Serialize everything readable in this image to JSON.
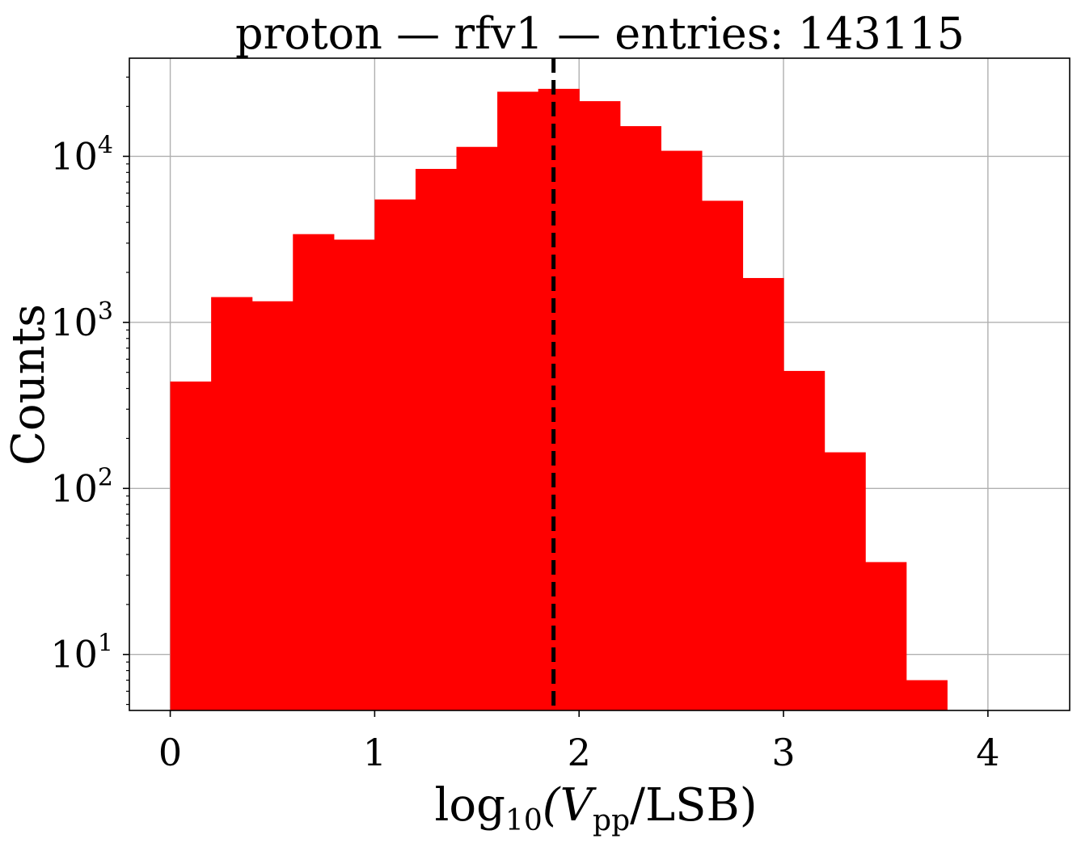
{
  "chart_data": {
    "type": "bar",
    "title": "proton — rfv1 — entries: 143115",
    "xlabel": {
      "main": "log",
      "sub1": "10",
      "mid": "(V",
      "sub2": "pp",
      "end": "/LSB)"
    },
    "ylabel": "Counts",
    "xlim": [
      -0.2,
      4.4
    ],
    "ylim": [
      4.6,
      39000
    ],
    "yscale": "log",
    "grid": true,
    "x_ticks": [
      {
        "value": 0,
        "label": "0"
      },
      {
        "value": 1,
        "label": "1"
      },
      {
        "value": 2,
        "label": "2"
      },
      {
        "value": 3,
        "label": "3"
      },
      {
        "value": 4,
        "label": "4"
      }
    ],
    "y_ticks": [
      {
        "value": 10,
        "base": "10",
        "exp": "1"
      },
      {
        "value": 100,
        "base": "10",
        "exp": "2"
      },
      {
        "value": 1000,
        "base": "10",
        "exp": "3"
      },
      {
        "value": 10000,
        "base": "10",
        "exp": "4"
      }
    ],
    "bin_edges": [
      0.0,
      0.2,
      0.4,
      0.6,
      0.8,
      1.0,
      1.2,
      1.4,
      1.6,
      1.8,
      2.0,
      2.2,
      2.4,
      2.6,
      2.8,
      3.0,
      3.2,
      3.4,
      3.6,
      3.8
    ],
    "counts": [
      440,
      1420,
      1340,
      3400,
      3150,
      5500,
      8400,
      11400,
      24500,
      25500,
      21500,
      15200,
      10800,
      5400,
      1850,
      510,
      165,
      36,
      7
    ],
    "vline": {
      "x": 1.875,
      "style": "dashed",
      "color": "#000000"
    },
    "bar_color": "#ff0000"
  }
}
